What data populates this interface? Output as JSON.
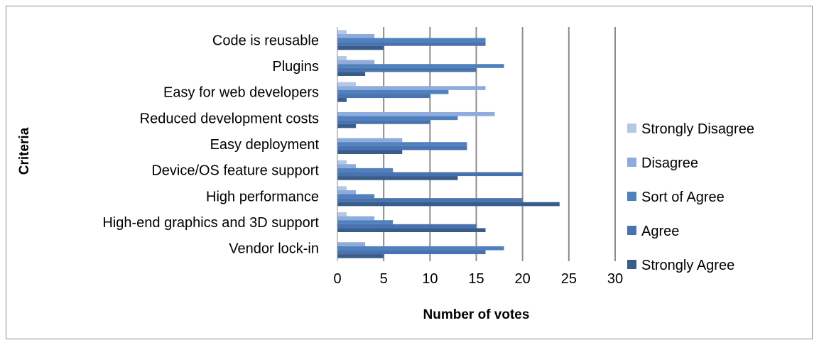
{
  "chart_data": {
    "type": "bar",
    "orientation": "horizontal",
    "categories": [
      "Code is reusable",
      "Plugins",
      "Easy for web developers",
      "Reduced development costs",
      "Easy deployment",
      "Device/OS feature support",
      "High performance",
      "High-end graphics and 3D support",
      "Vendor lock-in"
    ],
    "series": [
      {
        "name": "Strongly Disagree",
        "color": "#b4c7e7",
        "values": [
          1,
          1,
          2,
          0,
          0,
          1,
          1,
          1,
          0
        ]
      },
      {
        "name": "Disagree",
        "color": "#8faadc",
        "values": [
          4,
          4,
          16,
          17,
          7,
          2,
          2,
          4,
          3
        ]
      },
      {
        "name": "Sort of Agree",
        "color": "#4f81bd",
        "values": [
          16,
          18,
          12,
          13,
          14,
          6,
          4,
          6,
          18
        ]
      },
      {
        "name": "Agree",
        "color": "#4a72b0",
        "values": [
          16,
          15,
          10,
          10,
          14,
          20,
          20,
          15,
          16
        ]
      },
      {
        "name": "Strongly Agree",
        "color": "#385d8a",
        "values": [
          5,
          3,
          1,
          2,
          7,
          13,
          24,
          16,
          5
        ]
      }
    ],
    "xlabel": "Number of votes",
    "ylabel": "Criteria",
    "xlim": [
      0,
      30
    ],
    "xticks": [
      "0",
      "5",
      "10",
      "15",
      "20",
      "25",
      "30"
    ],
    "grid": "vertical",
    "legend_position": "right"
  }
}
